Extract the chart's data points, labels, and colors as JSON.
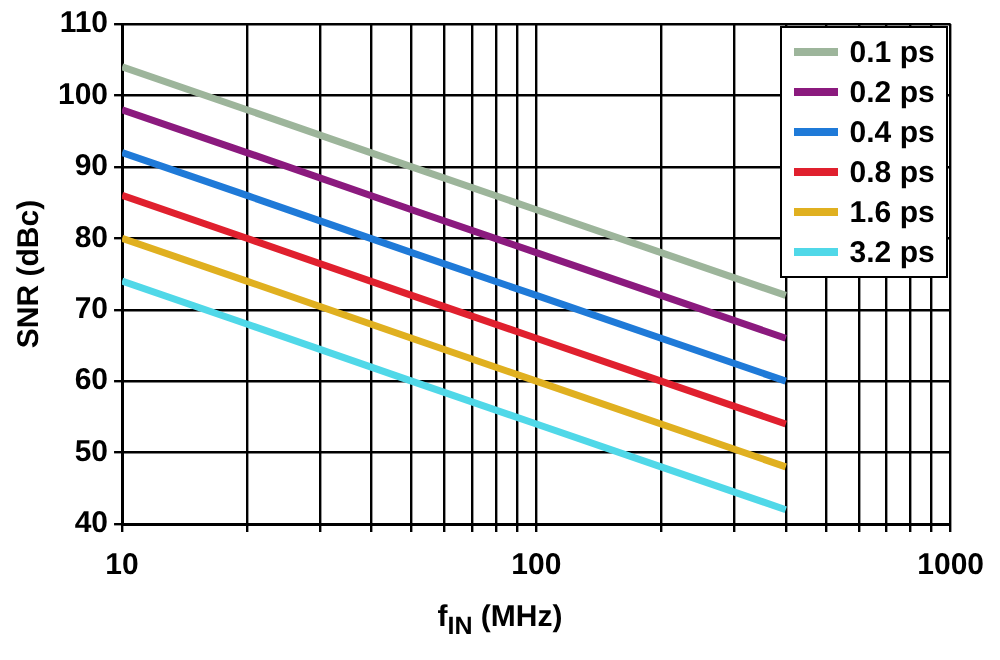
{
  "chart_data": {
    "type": "line",
    "xlabel": "f$_{IN}$ (MHz)",
    "ylabel": "SNR (dBc)",
    "log": "x",
    "x": [
      10,
      20,
      50,
      100,
      200,
      400
    ],
    "series": [
      {
        "name": "0.1 ps",
        "color": "#9db59b",
        "values": [
          104,
          98,
          90,
          84,
          78,
          72
        ]
      },
      {
        "name": "0.2 ps",
        "color": "#8b1a7e",
        "values": [
          98,
          92,
          84,
          78,
          72,
          66
        ]
      },
      {
        "name": "0.4 ps",
        "color": "#1f7ad8",
        "values": [
          92,
          86,
          78,
          72,
          66,
          60
        ]
      },
      {
        "name": "0.8 ps",
        "color": "#e0202e",
        "values": [
          86,
          80,
          72,
          66,
          60,
          54
        ]
      },
      {
        "name": "1.6 ps",
        "color": "#e0b020",
        "values": [
          80,
          74,
          66,
          60,
          54,
          48
        ]
      },
      {
        "name": "3.2 ps",
        "color": "#50d8e8",
        "values": [
          74,
          68,
          60,
          54,
          48,
          42
        ]
      }
    ],
    "xlim": [
      10,
      1000
    ],
    "xticks": [
      10,
      {
        "value": 20,
        "label": null
      },
      {
        "value": 30,
        "label": null
      },
      {
        "value": 40,
        "label": null
      },
      {
        "value": 50,
        "label": null
      },
      {
        "value": 60,
        "label": null
      },
      {
        "value": 70,
        "label": null
      },
      {
        "value": 80,
        "label": null
      },
      {
        "value": 90,
        "label": null
      },
      100,
      {
        "value": 200,
        "label": null
      },
      {
        "value": 300,
        "label": null
      },
      {
        "value": 400,
        "label": null
      },
      {
        "value": 500,
        "label": null
      },
      {
        "value": 600,
        "label": null
      },
      {
        "value": 700,
        "label": null
      },
      {
        "value": 800,
        "label": null
      },
      {
        "value": 900,
        "label": null
      },
      1000
    ],
    "ylim": [
      40,
      110
    ],
    "yticks": [
      40,
      50,
      60,
      70,
      80,
      90,
      100,
      110
    ],
    "grid": true,
    "legend": "top right",
    "marker": "none",
    "line_style": "solid"
  }
}
